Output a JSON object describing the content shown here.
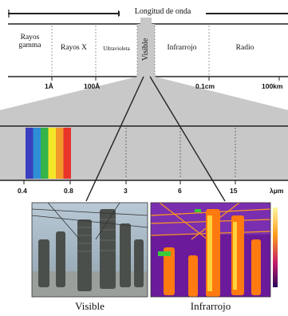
{
  "header": {
    "title": "Longitud de onda"
  },
  "bands": [
    {
      "id": "gamma",
      "label_line1": "Rayos",
      "label_line2": "gamma"
    },
    {
      "id": "xray",
      "label": "Rayos X"
    },
    {
      "id": "uv",
      "label": "Ultravioleta"
    },
    {
      "id": "visible",
      "label": "Visible"
    },
    {
      "id": "ir",
      "label": "Infrarrojo"
    },
    {
      "id": "radio",
      "label": "Radio"
    }
  ],
  "top_ticks": [
    "1Å",
    "100Å",
    "0.1cm",
    "100km"
  ],
  "bottom_ticks": [
    "0.4",
    "0.8",
    "3",
    "6",
    "15",
    "λμm"
  ],
  "spectrum_colors": [
    "#3a3fbf",
    "#2e8ed6",
    "#33b34a",
    "#f5e62a",
    "#f2972a",
    "#e8342b"
  ],
  "photos": {
    "visible_caption": "Visible",
    "infrared_caption": "Infrarrojo"
  }
}
